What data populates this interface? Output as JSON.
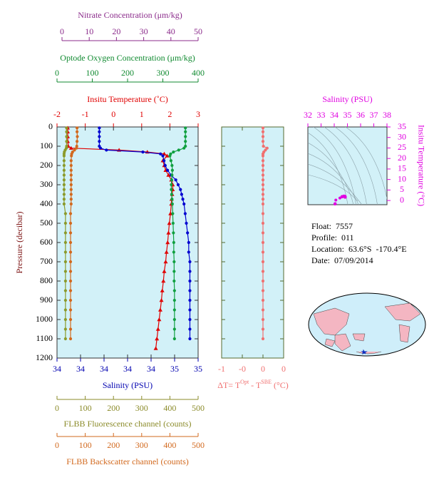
{
  "chart_data": [
    {
      "type": "profile",
      "ylabel": "Pressure (decibar)",
      "ylim": [
        0,
        1200
      ],
      "y_inverted": true,
      "yticks": [
        0,
        100,
        200,
        300,
        400,
        500,
        600,
        700,
        800,
        900,
        1000,
        1100,
        1200
      ],
      "pressure": [
        5,
        25,
        50,
        75,
        100,
        110,
        120,
        130,
        140,
        150,
        175,
        200,
        225,
        250,
        275,
        300,
        325,
        350,
        375,
        400,
        450,
        500,
        550,
        600,
        650,
        700,
        750,
        800,
        850,
        900,
        950,
        1000,
        1050,
        1100,
        1150
      ],
      "x_axes": [
        {
          "label": "Nitrate Concentration (μm/kg)",
          "color": "#8b2b8b",
          "xlim": [
            0,
            50
          ],
          "xticks": [
            0,
            10,
            20,
            30,
            40,
            50
          ]
        },
        {
          "label": "Optode Oxygen Concentration (μm/kg)",
          "color": "#108a30",
          "xlim": [
            0,
            400
          ],
          "xticks": [
            0,
            100,
            200,
            300,
            400
          ]
        },
        {
          "label": "Insitu Temperature (˚C)",
          "color": "#e00000",
          "xlim": [
            -2,
            3
          ],
          "xticks": [
            -2,
            -1,
            0,
            1,
            2,
            3
          ]
        },
        {
          "label": "Salinity (PSU)",
          "color": "#0000b0",
          "xlim": [
            33.7,
            34.9
          ],
          "xticks": [
            {
              "value": 33.7,
              "label": "34"
            },
            {
              "value": 33.9,
              "label": "34"
            },
            {
              "value": 34.1,
              "label": "34"
            },
            {
              "value": 34.3,
              "label": "34"
            },
            {
              "value": 34.5,
              "label": "34"
            },
            {
              "value": 34.7,
              "label": "35"
            },
            {
              "value": 34.9,
              "label": "35"
            }
          ]
        },
        {
          "label": "FLBB Fluorescence channel (counts)",
          "color": "#8b8b2a",
          "xlim": [
            0,
            500
          ],
          "xticks": [
            0,
            100,
            200,
            300,
            400,
            500
          ]
        },
        {
          "label": "FLBB Backscatter channel (counts)",
          "color": "#d2691e",
          "xlim": [
            0,
            500
          ],
          "xticks": [
            0,
            100,
            200,
            300,
            400,
            500
          ]
        }
      ],
      "series": [
        {
          "x_axis": 2,
          "color": "#e00000",
          "marker": "triangle",
          "values": [
            -1.62,
            -1.62,
            -1.62,
            -1.62,
            -1.6,
            -1.5,
            0.2,
            1.2,
            1.8,
            1.9,
            1.75,
            1.8,
            1.85,
            1.95,
            2.05,
            2.1,
            2.1,
            2.08,
            2.06,
            2.05,
            2.02,
            1.98,
            1.95,
            1.92,
            1.88,
            1.85,
            1.8,
            1.77,
            1.73,
            1.7,
            1.66,
            1.62,
            1.58,
            1.54,
            1.5
          ]
        },
        {
          "x_axis": 3,
          "color": "#0000d0",
          "marker": "circle",
          "values": [
            34.06,
            34.06,
            34.06,
            34.06,
            34.06,
            34.07,
            34.12,
            34.43,
            34.58,
            34.6,
            34.61,
            34.62,
            34.64,
            34.67,
            34.71,
            34.73,
            34.75,
            34.76,
            34.77,
            34.78,
            34.79,
            34.8,
            34.81,
            34.82,
            34.82,
            34.83,
            34.83,
            34.83,
            34.83,
            34.83,
            34.83,
            34.83,
            34.83,
            34.83,
            null
          ]
        },
        {
          "x_axis": 1,
          "color": "#10a040",
          "marker": "circle",
          "values": [
            364,
            364,
            364,
            364,
            364,
            360,
            345,
            330,
            322,
            320,
            323,
            326,
            327,
            326,
            325,
            324,
            324,
            325,
            326,
            327,
            328,
            329,
            330,
            331,
            331,
            332,
            332,
            332,
            333,
            333,
            333,
            333,
            333,
            333,
            null
          ]
        },
        {
          "x_axis": 4,
          "color": "#8b9a2a",
          "marker": "circle",
          "values": [
            34,
            34,
            34,
            34,
            34,
            33,
            29,
            26,
            25,
            25,
            25,
            25,
            25,
            25,
            25,
            25,
            25,
            25,
            25,
            25,
            30,
            30,
            30,
            30,
            30,
            30,
            30,
            30,
            30,
            30,
            30,
            30,
            30,
            30,
            null
          ]
        },
        {
          "x_axis": 5,
          "color": "#d2691e",
          "marker": "circle",
          "values": [
            71,
            71,
            72,
            71,
            70,
            69,
            62,
            55,
            52,
            51,
            50,
            50,
            50,
            50,
            50,
            50,
            50,
            50,
            50,
            50,
            48,
            48,
            48,
            48,
            48,
            48,
            48,
            48,
            48,
            48,
            48,
            48,
            48,
            48,
            null
          ]
        }
      ]
    },
    {
      "type": "profile",
      "xlabel_parts": [
        "ΔT= T",
        "Opt",
        " - T",
        "SBE",
        " (°C)"
      ],
      "color": "#f07070",
      "xlim": [
        -1,
        0.5
      ],
      "xticks": [
        -1,
        {
          "value": -0.5,
          "label": "-0"
        },
        0,
        {
          "value": 0.5,
          "label": "0"
        }
      ],
      "values": [
        0,
        0,
        0,
        0,
        0.01,
        0.1,
        0.06,
        0.02,
        0,
        0,
        0,
        0,
        0,
        0,
        0,
        0,
        0,
        0,
        0,
        0,
        0,
        0,
        0,
        0,
        0,
        0,
        0,
        0,
        0,
        0,
        0,
        0,
        0,
        0,
        null
      ]
    },
    {
      "type": "ts",
      "xlabel": "Salinity (PSU)",
      "ylabel": "Insitu Temperature (°C)",
      "color": "#e000e0",
      "xlim": [
        32,
        38
      ],
      "xticks": [
        32,
        33,
        34,
        35,
        36,
        37,
        38
      ],
      "ylim": [
        -2,
        35
      ],
      "yticks": [
        0,
        5,
        10,
        15,
        20,
        25,
        30,
        35
      ]
    }
  ],
  "info": [
    "Float:  7557",
    "Profile:  011",
    "Location:  63.6°S  -170.4°E",
    "Date:  07/09/2014"
  ]
}
